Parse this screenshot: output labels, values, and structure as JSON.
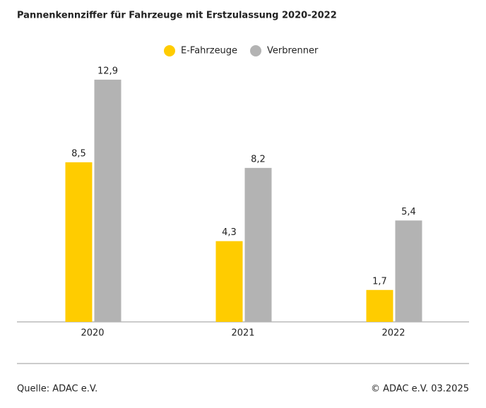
{
  "chart_data": {
    "type": "bar",
    "title": "Pannenkennziffer für Fahrzeuge mit Erstzulassung 2020-2022",
    "categories": [
      "2020",
      "2021",
      "2022"
    ],
    "series": [
      {
        "name": "E-Fahrzeuge",
        "color": "#ffcc00",
        "values": [
          8.5,
          4.3,
          1.7
        ],
        "value_labels": [
          "8,5",
          "4,3",
          "1,7"
        ]
      },
      {
        "name": "Verbrenner",
        "color": "#b3b3b3",
        "values": [
          12.9,
          8.2,
          5.4
        ],
        "value_labels": [
          "12,9",
          "8,2",
          "5,4"
        ]
      }
    ],
    "source": "Quelle: ADAC e.V.",
    "credit": "© ADAC e.V. 03.2025"
  }
}
